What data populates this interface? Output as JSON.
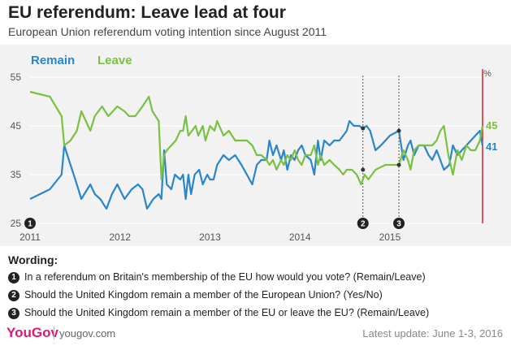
{
  "header": {
    "title": "EU referendum: Leave lead at four",
    "subtitle": "European Union referendum voting intention since August 2011"
  },
  "chart_data": {
    "type": "line",
    "unit_label": "%",
    "ylim": [
      25,
      55
    ],
    "y_ticks": [
      25,
      35,
      45,
      55
    ],
    "xlim": [
      2011.0,
      2016.45
    ],
    "x_ticks": [
      {
        "label": "2011",
        "value": 2011
      },
      {
        "label": "2012",
        "value": 2012
      },
      {
        "label": "2013",
        "value": 2013
      },
      {
        "label": "2014",
        "value": 2014
      },
      {
        "label": "2015",
        "value": 2015
      }
    ],
    "series": [
      {
        "name": "Remain",
        "color": "#2a86c8",
        "end_label": "41",
        "points": [
          [
            2011.0,
            30
          ],
          [
            2011.22,
            32
          ],
          [
            2011.35,
            35
          ],
          [
            2011.38,
            41
          ],
          [
            2011.45,
            37
          ],
          [
            2011.52,
            33
          ],
          [
            2011.57,
            30
          ],
          [
            2011.67,
            33
          ],
          [
            2011.72,
            31
          ],
          [
            2011.78,
            30
          ],
          [
            2011.85,
            28
          ],
          [
            2011.91,
            31
          ],
          [
            2011.97,
            33
          ],
          [
            2012.05,
            30
          ],
          [
            2012.13,
            32
          ],
          [
            2012.2,
            33
          ],
          [
            2012.25,
            32
          ],
          [
            2012.3,
            28
          ],
          [
            2012.37,
            30
          ],
          [
            2012.43,
            31
          ],
          [
            2012.46,
            30
          ],
          [
            2012.49,
            40
          ],
          [
            2012.52,
            33
          ],
          [
            2012.57,
            32
          ],
          [
            2012.61,
            35
          ],
          [
            2012.67,
            34
          ],
          [
            2012.7,
            35
          ],
          [
            2012.73,
            30
          ],
          [
            2012.76,
            35
          ],
          [
            2012.79,
            31
          ],
          [
            2012.83,
            35
          ],
          [
            2012.88,
            36
          ],
          [
            2012.92,
            33
          ],
          [
            2012.97,
            35
          ],
          [
            2013.0,
            34
          ],
          [
            2013.04,
            34
          ],
          [
            2013.08,
            37
          ],
          [
            2013.15,
            39
          ],
          [
            2013.21,
            38
          ],
          [
            2013.28,
            39
          ],
          [
            2013.35,
            37
          ],
          [
            2013.41,
            35
          ],
          [
            2013.47,
            33
          ],
          [
            2013.52,
            37
          ],
          [
            2013.57,
            38
          ],
          [
            2013.63,
            38
          ],
          [
            2013.66,
            42
          ],
          [
            2013.7,
            39
          ],
          [
            2013.74,
            41
          ],
          [
            2013.79,
            38
          ],
          [
            2013.82,
            40
          ],
          [
            2013.86,
            36
          ],
          [
            2013.9,
            39
          ],
          [
            2013.94,
            38
          ],
          [
            2013.98,
            40
          ],
          [
            2014.02,
            41
          ],
          [
            2014.06,
            39
          ],
          [
            2014.12,
            38
          ],
          [
            2014.16,
            35
          ],
          [
            2014.2,
            42
          ],
          [
            2014.23,
            38
          ],
          [
            2014.27,
            42
          ],
          [
            2014.33,
            41
          ],
          [
            2014.38,
            42
          ],
          [
            2014.44,
            42
          ],
          [
            2014.48,
            43
          ],
          [
            2014.52,
            44
          ],
          [
            2014.55,
            46
          ],
          [
            2014.6,
            45
          ],
          [
            2014.66,
            45
          ],
          [
            2014.7,
            44.5
          ],
          [
            2014.74,
            45
          ],
          [
            2014.78,
            44
          ],
          [
            2014.84,
            40
          ],
          [
            2014.9,
            41
          ],
          [
            2015.0,
            43
          ],
          [
            2015.1,
            44
          ],
          [
            2015.15,
            38
          ],
          [
            2015.2,
            41
          ],
          [
            2015.23,
            42
          ],
          [
            2015.27,
            39
          ],
          [
            2015.32,
            41
          ],
          [
            2015.38,
            41
          ],
          [
            2015.43,
            39
          ],
          [
            2015.47,
            38
          ],
          [
            2015.52,
            40
          ],
          [
            2015.56,
            38
          ],
          [
            2015.6,
            36
          ],
          [
            2015.66,
            37
          ],
          [
            2015.7,
            41
          ],
          [
            2015.75,
            39
          ],
          [
            2015.8,
            40
          ],
          [
            2015.85,
            41
          ],
          [
            2015.9,
            42
          ],
          [
            2015.95,
            43
          ],
          [
            2016.0,
            44
          ],
          [
            2016.03,
            41
          ]
        ]
      },
      {
        "name": "Leave",
        "color": "#7ac142",
        "end_label": "45",
        "points": [
          [
            2011.0,
            52
          ],
          [
            2011.22,
            51
          ],
          [
            2011.35,
            47
          ],
          [
            2011.38,
            41
          ],
          [
            2011.45,
            42
          ],
          [
            2011.52,
            44
          ],
          [
            2011.57,
            48
          ],
          [
            2011.62,
            46
          ],
          [
            2011.67,
            44
          ],
          [
            2011.72,
            47
          ],
          [
            2011.8,
            49
          ],
          [
            2011.87,
            47
          ],
          [
            2011.92,
            48
          ],
          [
            2011.97,
            49
          ],
          [
            2012.05,
            48
          ],
          [
            2012.1,
            47
          ],
          [
            2012.17,
            47
          ],
          [
            2012.25,
            49
          ],
          [
            2012.32,
            51
          ],
          [
            2012.36,
            48
          ],
          [
            2012.43,
            46
          ],
          [
            2012.46,
            34
          ],
          [
            2012.49,
            39
          ],
          [
            2012.52,
            40
          ],
          [
            2012.57,
            41
          ],
          [
            2012.62,
            42
          ],
          [
            2012.67,
            44
          ],
          [
            2012.7,
            44
          ],
          [
            2012.73,
            47
          ],
          [
            2012.76,
            43
          ],
          [
            2012.8,
            44
          ],
          [
            2012.84,
            45
          ],
          [
            2012.87,
            43
          ],
          [
            2012.92,
            45
          ],
          [
            2012.95,
            42
          ],
          [
            2013.0,
            45
          ],
          [
            2013.05,
            44
          ],
          [
            2013.08,
            46
          ],
          [
            2013.15,
            43
          ],
          [
            2013.21,
            44
          ],
          [
            2013.28,
            42
          ],
          [
            2013.35,
            42
          ],
          [
            2013.41,
            42
          ],
          [
            2013.47,
            41
          ],
          [
            2013.52,
            39
          ],
          [
            2013.57,
            39
          ],
          [
            2013.63,
            38
          ],
          [
            2013.66,
            37
          ],
          [
            2013.7,
            38
          ],
          [
            2013.74,
            36
          ],
          [
            2013.79,
            38
          ],
          [
            2013.82,
            37
          ],
          [
            2013.86,
            39
          ],
          [
            2013.9,
            38
          ],
          [
            2013.94,
            40
          ],
          [
            2013.98,
            38
          ],
          [
            2014.02,
            37
          ],
          [
            2014.06,
            39
          ],
          [
            2014.12,
            39
          ],
          [
            2014.16,
            41
          ],
          [
            2014.2,
            37
          ],
          [
            2014.23,
            39
          ],
          [
            2014.27,
            37
          ],
          [
            2014.33,
            38
          ],
          [
            2014.38,
            37
          ],
          [
            2014.44,
            36
          ],
          [
            2014.48,
            35
          ],
          [
            2014.52,
            36
          ],
          [
            2014.58,
            36
          ],
          [
            2014.63,
            35
          ],
          [
            2014.68,
            33
          ],
          [
            2014.72,
            35
          ],
          [
            2014.76,
            34
          ],
          [
            2014.84,
            36
          ],
          [
            2014.95,
            37
          ],
          [
            2015.05,
            37
          ],
          [
            2015.1,
            37
          ],
          [
            2015.15,
            40
          ],
          [
            2015.2,
            38
          ],
          [
            2015.23,
            36
          ],
          [
            2015.27,
            40
          ],
          [
            2015.32,
            41
          ],
          [
            2015.38,
            41
          ],
          [
            2015.43,
            41
          ],
          [
            2015.47,
            41
          ],
          [
            2015.52,
            42
          ],
          [
            2015.56,
            44
          ],
          [
            2015.6,
            45
          ],
          [
            2015.65,
            39
          ],
          [
            2015.7,
            35
          ],
          [
            2015.75,
            40
          ],
          [
            2015.8,
            38
          ],
          [
            2015.85,
            41
          ],
          [
            2015.9,
            40
          ],
          [
            2015.95,
            40
          ],
          [
            2016.0,
            42
          ],
          [
            2016.03,
            45
          ]
        ]
      }
    ],
    "question_markers": [
      {
        "label": "1",
        "x": 2011.0,
        "dashed": false,
        "dots": []
      },
      {
        "label": "2",
        "x": 2014.7,
        "dashed": true,
        "dots": [
          36,
          44.5
        ]
      },
      {
        "label": "3",
        "x": 2015.1,
        "dashed": true,
        "dots": [
          37,
          44
        ]
      }
    ]
  },
  "wording": {
    "title": "Wording:",
    "notes": [
      {
        "num": "1",
        "text": "In a referendum on Britain's membership of the EU how would you vote? (Remain/Leave)"
      },
      {
        "num": "2",
        "text": "Should the United Kingdom remain a member of the European Union? (Yes/No)"
      },
      {
        "num": "3",
        "text": "Should the United Kingdom remain a member of the EU or leave the EU? (Remain/Leave)"
      }
    ]
  },
  "footer": {
    "brand": "YouGov",
    "site": "yougov.com",
    "update": "Latest update: June 1-3, 2016"
  },
  "colors": {
    "remain": "#2a86c8",
    "leave": "#7ac142",
    "accent_line": "#d62027",
    "brand": "#e0167a"
  }
}
